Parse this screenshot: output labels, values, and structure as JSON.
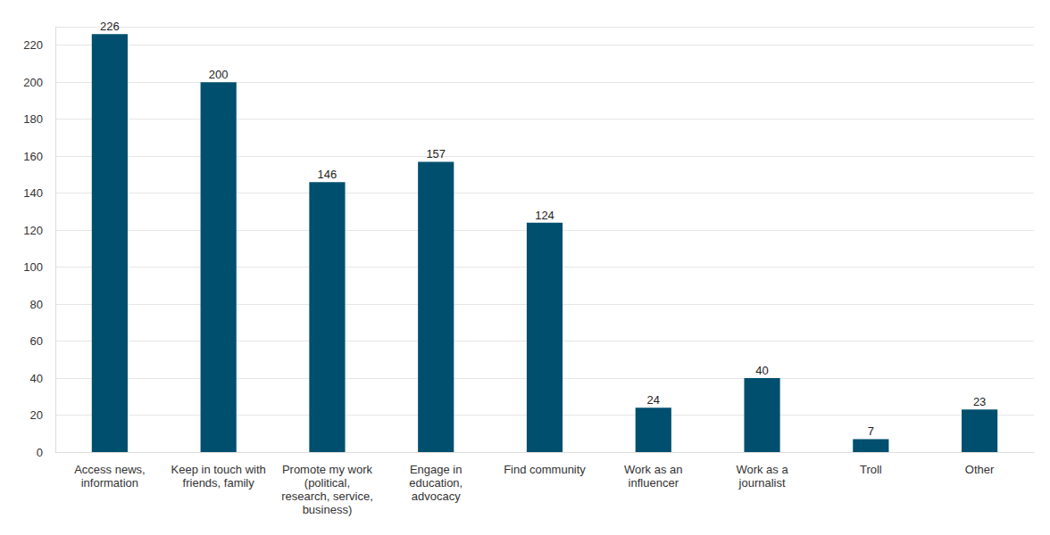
{
  "chart_data": {
    "type": "bar",
    "categories": [
      "Access news,\ninformation",
      "Keep in touch with\nfriends, family",
      "Promote my work\n(political,\nresearch, service,\nbusiness)",
      "Engage in\neducation,\nadvocacy",
      "Find community",
      "Work as an\ninfluencer",
      "Work as a\njournalist",
      "Troll",
      "Other"
    ],
    "values": [
      226,
      200,
      146,
      157,
      124,
      24,
      40,
      7,
      23
    ],
    "color": "#004f6e",
    "ylim": [
      0,
      230
    ],
    "yticks": [
      0,
      20,
      40,
      60,
      80,
      100,
      120,
      140,
      160,
      180,
      200,
      220
    ],
    "grid": true,
    "data_labels": true
  }
}
